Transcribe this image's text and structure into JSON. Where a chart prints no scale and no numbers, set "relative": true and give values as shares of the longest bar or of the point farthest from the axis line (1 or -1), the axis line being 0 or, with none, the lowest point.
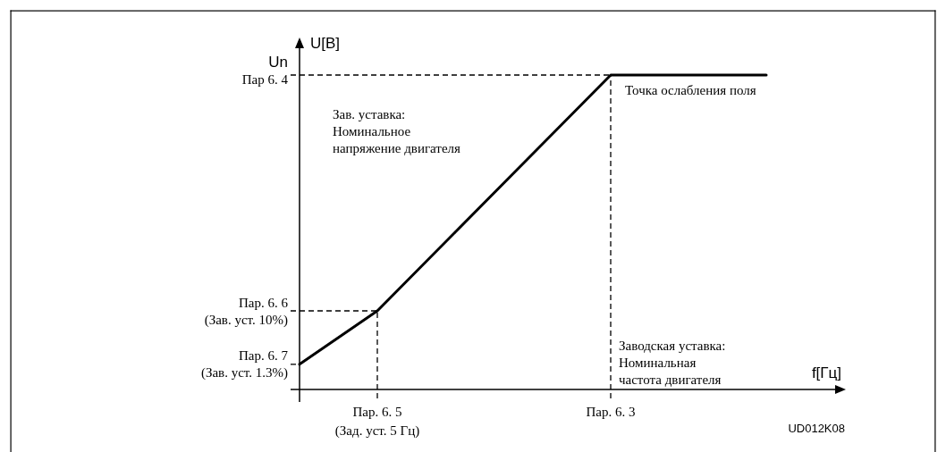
{
  "chart_data": {
    "type": "line",
    "relative": true,
    "ylabel": "U[В]",
    "xlabel": "f[Гц]",
    "categories": [
      null,
      "Пар. 6. 5\n(Зад. уст. 5 Гц)",
      null,
      null,
      "Пар. 6. 3",
      null,
      null
    ],
    "series": [
      {
        "color": "#000000",
        "values": [
          0.08,
          0.25,
          0.5,
          0.75,
          1,
          1,
          1
        ]
      }
    ],
    "ref_lines": [
      {
        "axis": "y",
        "value": 1,
        "label": "Un\nПар 6. 4",
        "line_style": "dashed"
      },
      {
        "axis": "y",
        "value": 0.25,
        "label": "Пар. 6. 6\n(Зав. уст. 10%)",
        "line_style": "dashed"
      },
      {
        "axis": "y",
        "value": 0.08,
        "label": "Пар. 6. 7\n(Зав. уст. 1.3%)",
        "line_style": "dashed"
      },
      {
        "axis": "x",
        "value": "Пар. 6. 5\n(Зад. уст. 5 Гц)",
        "line_style": "dashed"
      },
      {
        "axis": "x",
        "value": "Пар. 6. 3",
        "line_style": "dashed"
      }
    ],
    "annotations": [
      {
        "text": "Точка ослабления поля",
        "x": "Пар. 6. 3",
        "y": 1
      },
      "Зав. уставка:\nНоминальное\nнапряжение двигателя",
      "Заводская уставка:\nНоминальная\nчастота двигателя",
      "UD012K08"
    ]
  }
}
